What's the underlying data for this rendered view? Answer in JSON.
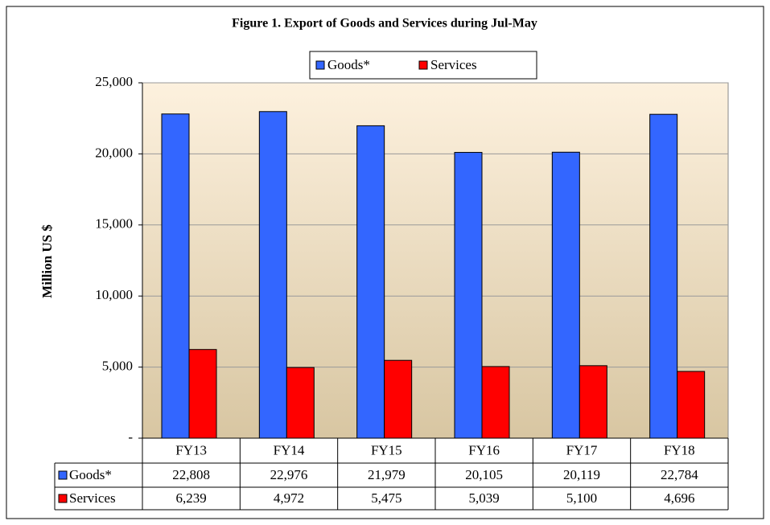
{
  "chart_data": {
    "type": "bar",
    "title": "Figure 1. Export of Goods and Services during Jul-May",
    "y_label": "Million US $",
    "categories": [
      "FY13",
      "FY14",
      "FY15",
      "FY16",
      "FY17",
      "FY18"
    ],
    "series": [
      {
        "name": "Goods*",
        "color": "#3366ff",
        "values": [
          22808,
          22976,
          21979,
          20105,
          20119,
          22784
        ],
        "value_labels": [
          "22,808",
          "22,976",
          "21,979",
          "20,105",
          "20,119",
          "22,784"
        ]
      },
      {
        "name": "Services",
        "color": "#ff0000",
        "values": [
          6239,
          4972,
          5475,
          5039,
          5100,
          4696
        ],
        "value_labels": [
          "6,239",
          "4,972",
          "5,475",
          "5,039",
          "5,100",
          "4,696"
        ]
      }
    ],
    "ylim": [
      0,
      25000
    ],
    "yticks": [
      {
        "value": 0,
        "label": "-"
      },
      {
        "value": 5000,
        "label": "5,000"
      },
      {
        "value": 10000,
        "label": "10,000"
      },
      {
        "value": 15000,
        "label": "15,000"
      },
      {
        "value": 20000,
        "label": "20,000"
      },
      {
        "value": 25000,
        "label": "25,000"
      }
    ],
    "grid": true,
    "legend": "top"
  }
}
